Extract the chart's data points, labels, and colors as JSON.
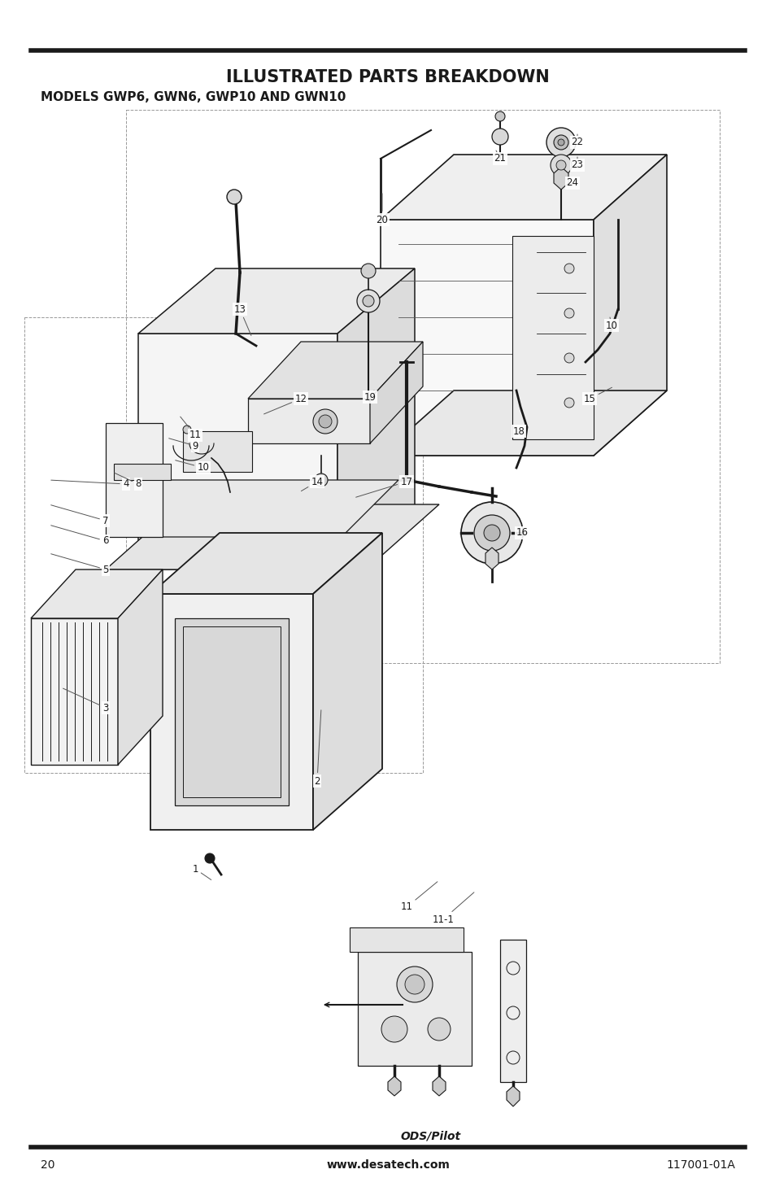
{
  "title": "ILLUSTRATED PARTS BREAKDOWN",
  "subtitle": "MODELS GWP6, GWN6, GWP10 AND GWN10",
  "page_number": "20",
  "website": "www.desatech.com",
  "part_number": "117001-01A",
  "ods_label": "ODS/Pilot",
  "bg_color": "#ffffff",
  "line_color": "#1a1a1a",
  "title_fontsize": 15,
  "subtitle_fontsize": 11,
  "footer_fontsize": 10,
  "page_width": 9.54,
  "page_height": 14.75
}
